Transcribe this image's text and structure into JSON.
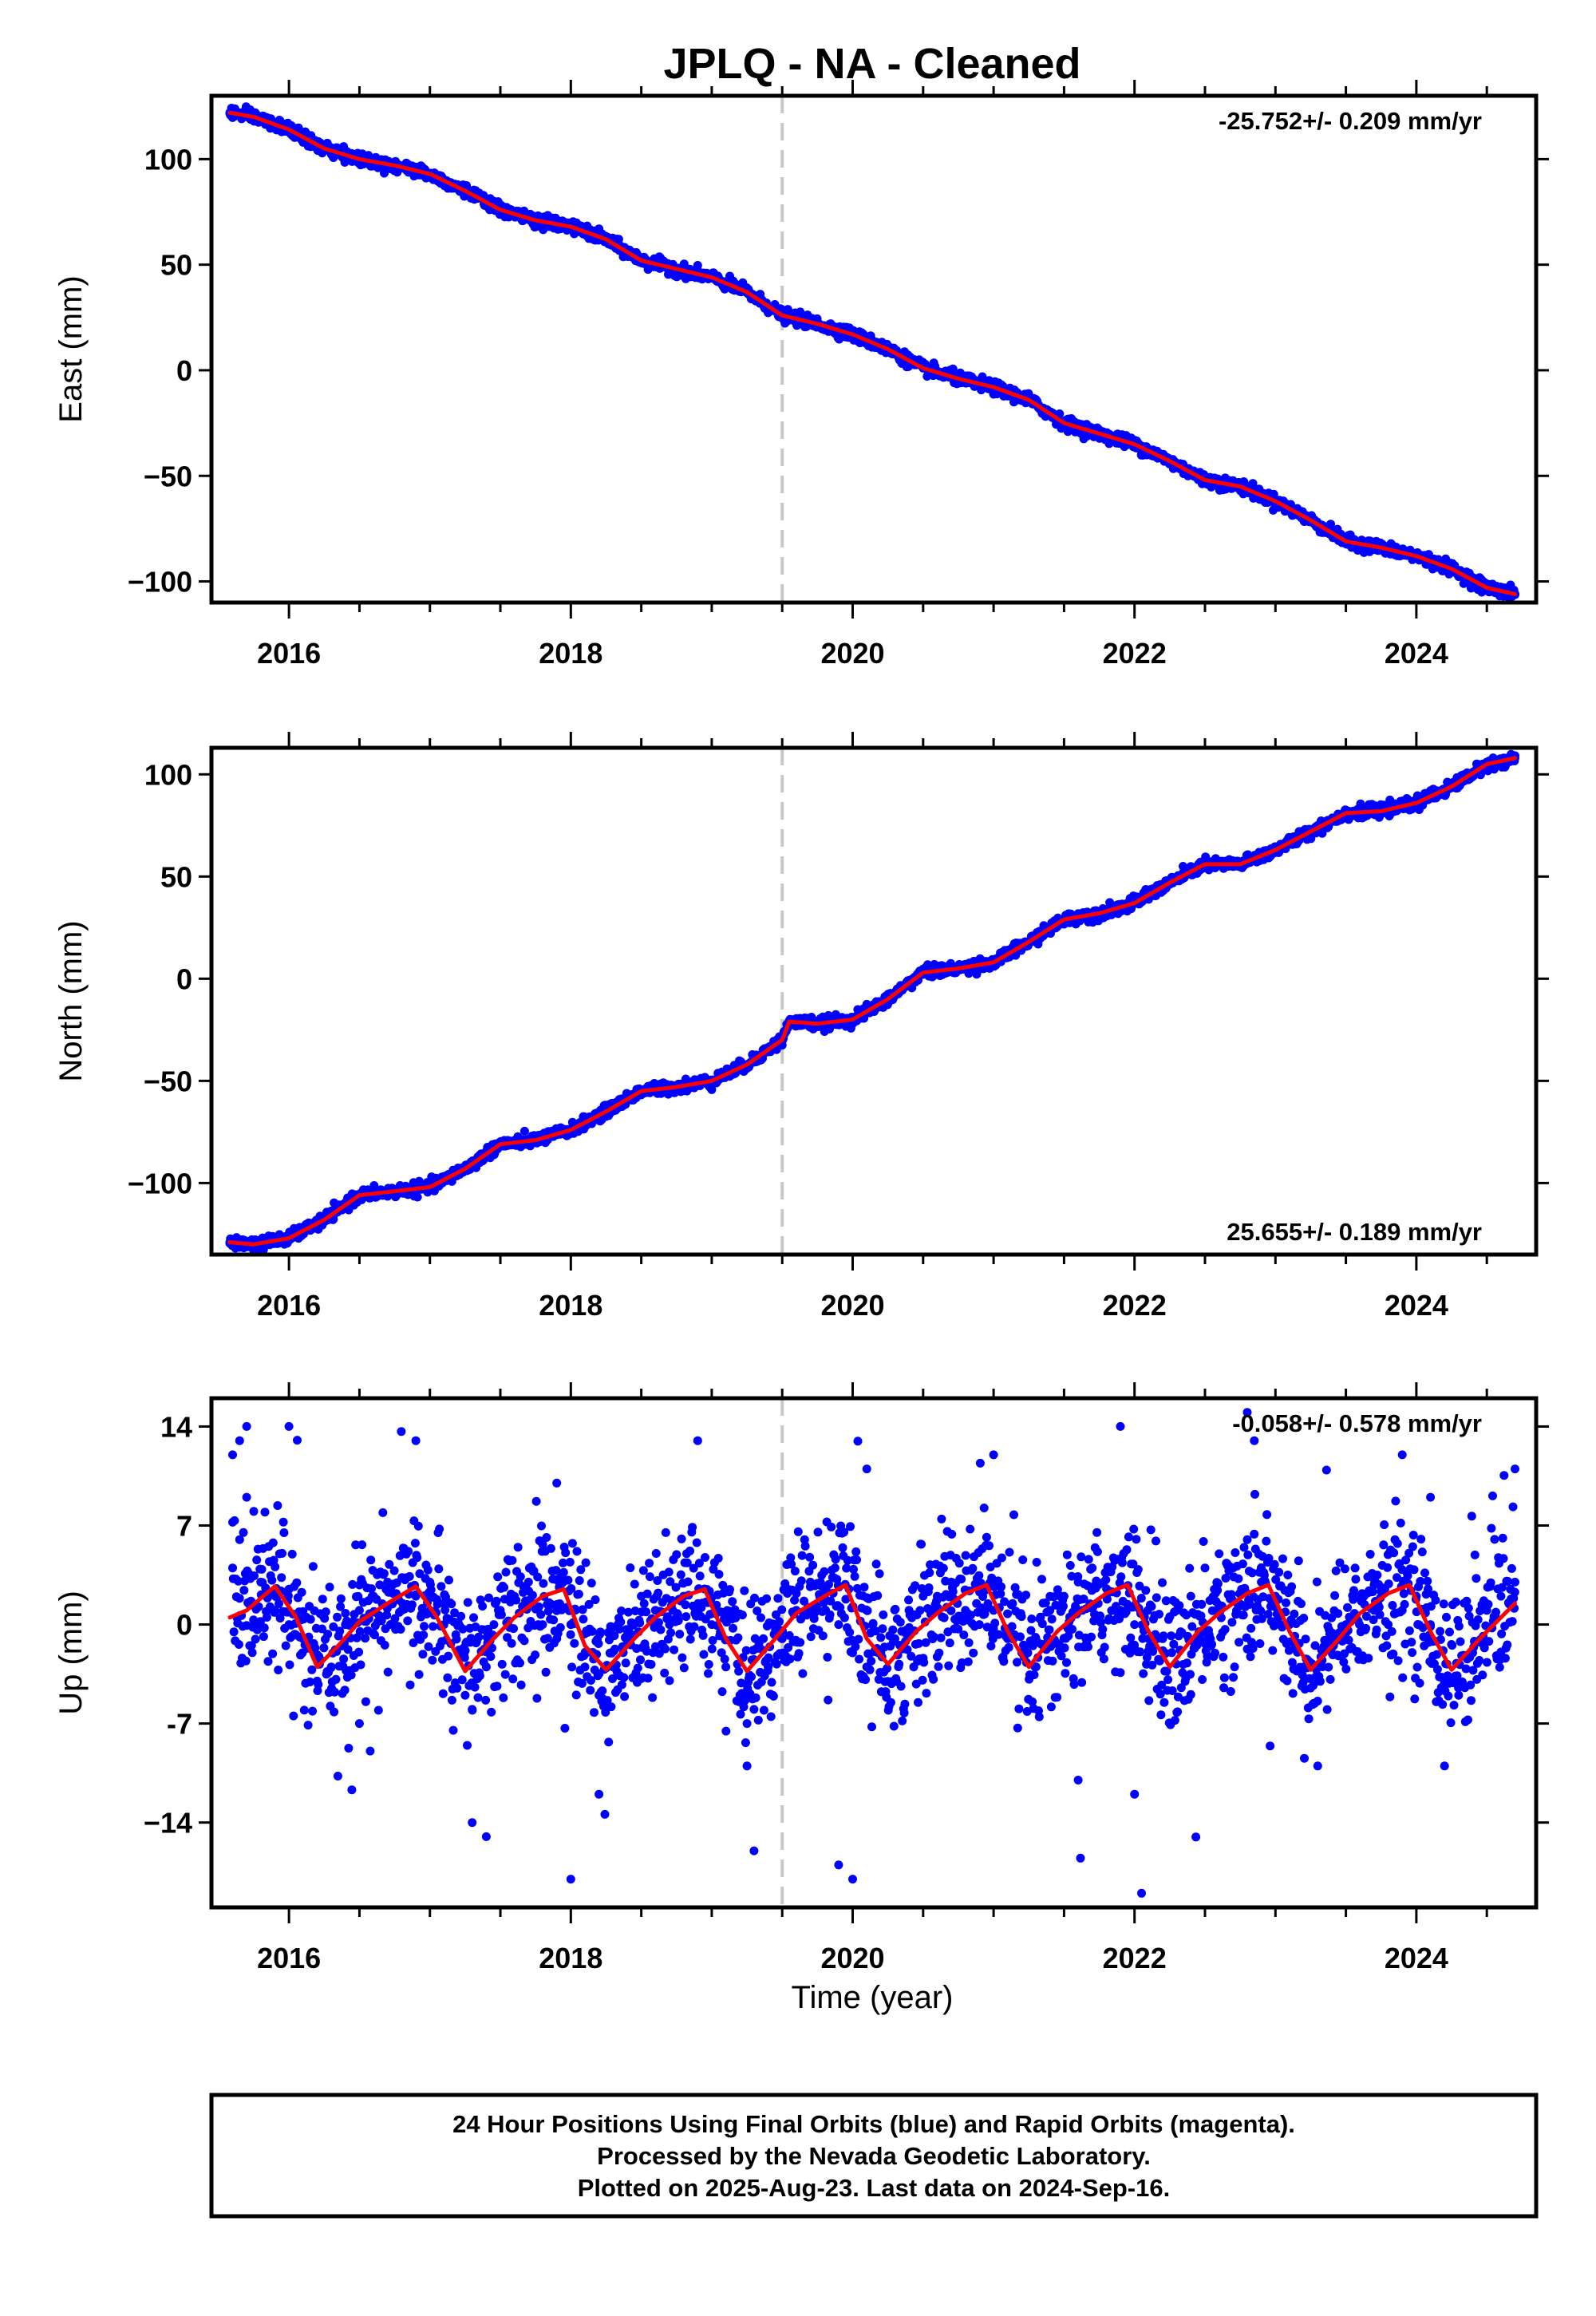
{
  "title": "JPLQ  - NA - Cleaned",
  "xlabel": "Time (year)",
  "footer": {
    "line1": "24 Hour Positions Using Final Orbits (blue) and Rapid Orbits (magenta).",
    "line2": "Processed by the Nevada Geodetic Laboratory.",
    "line3": "Plotted on 2025-Aug-23. Last data on 2024-Sep-16."
  },
  "colors": {
    "data": "#0000ff",
    "fit": "#ff0000",
    "event_line": "#c8c8c8",
    "frame": "#000000"
  },
  "chart_data": [
    {
      "type": "scatter",
      "ylabel": "East (mm)",
      "rate_text": "-25.752+/- 0.209 mm/yr",
      "rate_position": "top-right",
      "xlim": [
        2015.45,
        2024.85
      ],
      "ylim": [
        -110,
        130
      ],
      "xticks": [
        2016,
        2018,
        2020,
        2022,
        2024
      ],
      "xticks_labels": [
        "2016",
        "2018",
        "2020",
        "2022",
        "2024"
      ],
      "yticks": [
        100,
        50,
        0,
        -50,
        -100
      ],
      "yticks_labels": [
        "100",
        "50",
        "0",
        "−50",
        "−100"
      ],
      "event_line_x": 2019.5,
      "series": [
        {
          "role": "daily positions",
          "style": "dots",
          "x": [
            2015.58,
            2015.75,
            2016.0,
            2016.25,
            2016.5,
            2016.75,
            2017.0,
            2017.25,
            2017.5,
            2017.75,
            2018.0,
            2018.25,
            2018.5,
            2018.75,
            2019.0,
            2019.25,
            2019.5,
            2019.75,
            2020.0,
            2020.25,
            2020.5,
            2020.75,
            2021.0,
            2021.25,
            2021.5,
            2021.75,
            2022.0,
            2022.25,
            2022.5,
            2022.75,
            2023.0,
            2023.25,
            2023.5,
            2023.75,
            2024.0,
            2024.25,
            2024.5,
            2024.7
          ],
          "y": [
            122,
            120,
            114,
            105,
            100,
            97,
            93,
            85,
            76,
            71,
            68,
            62,
            52,
            48,
            44,
            37,
            26,
            22,
            17,
            10,
            1,
            -4,
            -8,
            -14,
            -25,
            -30,
            -35,
            -43,
            -52,
            -55,
            -62,
            -71,
            -81,
            -84,
            -88,
            -94,
            -103,
            -106
          ]
        },
        {
          "role": "model fit",
          "style": "line",
          "x": [
            2015.58,
            2015.75,
            2016.0,
            2016.25,
            2016.5,
            2016.75,
            2017.0,
            2017.25,
            2017.5,
            2017.75,
            2018.0,
            2018.25,
            2018.5,
            2018.75,
            2019.0,
            2019.25,
            2019.5,
            2019.75,
            2020.0,
            2020.25,
            2020.5,
            2020.75,
            2021.0,
            2021.25,
            2021.5,
            2021.75,
            2022.0,
            2022.25,
            2022.5,
            2022.75,
            2023.0,
            2023.25,
            2023.5,
            2023.75,
            2024.0,
            2024.25,
            2024.5,
            2024.7
          ],
          "y": [
            122,
            120,
            114,
            105,
            100,
            97,
            93,
            85,
            76,
            71,
            68,
            62,
            52,
            48,
            44,
            37,
            26,
            22,
            17,
            10,
            1,
            -4,
            -8,
            -14,
            -25,
            -30,
            -35,
            -43,
            -52,
            -55,
            -62,
            -71,
            -81,
            -84,
            -88,
            -94,
            -103,
            -106
          ]
        }
      ]
    },
    {
      "type": "scatter",
      "ylabel": "North (mm)",
      "rate_text": "25.655+/- 0.189 mm/yr",
      "rate_position": "bottom-right",
      "xlim": [
        2015.45,
        2024.85
      ],
      "ylim": [
        -135,
        113
      ],
      "xticks": [
        2016,
        2018,
        2020,
        2022,
        2024
      ],
      "xticks_labels": [
        "2016",
        "2018",
        "2020",
        "2022",
        "2024"
      ],
      "yticks": [
        100,
        50,
        0,
        -50,
        -100
      ],
      "yticks_labels": [
        "100",
        "50",
        "0",
        "−50",
        "−100"
      ],
      "event_line_x": 2019.5,
      "series": [
        {
          "role": "daily positions",
          "style": "dots",
          "x": [
            2015.58,
            2015.75,
            2016.0,
            2016.25,
            2016.5,
            2016.75,
            2017.0,
            2017.25,
            2017.5,
            2017.75,
            2018.0,
            2018.25,
            2018.5,
            2018.75,
            2019.0,
            2019.25,
            2019.5,
            2019.55,
            2019.75,
            2020.0,
            2020.25,
            2020.5,
            2020.75,
            2021.0,
            2021.25,
            2021.5,
            2021.75,
            2022.0,
            2022.25,
            2022.5,
            2022.75,
            2023.0,
            2023.25,
            2023.5,
            2023.75,
            2024.0,
            2024.25,
            2024.5,
            2024.7
          ],
          "y": [
            -129,
            -130,
            -127,
            -118,
            -106,
            -104,
            -102,
            -93,
            -81,
            -79,
            -74,
            -65,
            -55,
            -53,
            -50,
            -42,
            -30,
            -21,
            -22,
            -20,
            -10,
            3,
            5,
            8,
            18,
            29,
            32,
            37,
            47,
            56,
            56,
            63,
            72,
            81,
            82,
            86,
            94,
            105,
            108
          ]
        },
        {
          "role": "model fit",
          "style": "line",
          "x": [
            2015.58,
            2015.75,
            2016.0,
            2016.25,
            2016.5,
            2016.75,
            2017.0,
            2017.25,
            2017.5,
            2017.75,
            2018.0,
            2018.25,
            2018.5,
            2018.75,
            2019.0,
            2019.25,
            2019.5,
            2019.55,
            2019.75,
            2020.0,
            2020.25,
            2020.5,
            2020.75,
            2021.0,
            2021.25,
            2021.5,
            2021.75,
            2022.0,
            2022.25,
            2022.5,
            2022.75,
            2023.0,
            2023.25,
            2023.5,
            2023.75,
            2024.0,
            2024.25,
            2024.5,
            2024.7
          ],
          "y": [
            -129,
            -130,
            -127,
            -118,
            -106,
            -104,
            -102,
            -93,
            -81,
            -79,
            -74,
            -65,
            -55,
            -53,
            -50,
            -42,
            -30,
            -21,
            -22,
            -20,
            -10,
            3,
            5,
            8,
            18,
            29,
            32,
            37,
            47,
            56,
            56,
            63,
            72,
            81,
            82,
            86,
            94,
            105,
            108
          ]
        }
      ]
    },
    {
      "type": "scatter",
      "ylabel": "Up (mm)",
      "rate_text": "-0.058+/- 0.578 mm/yr",
      "rate_position": "top-right",
      "xlim": [
        2015.45,
        2024.85
      ],
      "ylim": [
        -20,
        16
      ],
      "xticks": [
        2016,
        2018,
        2020,
        2022,
        2024
      ],
      "xticks_labels": [
        "2016",
        "2018",
        "2020",
        "2022",
        "2024"
      ],
      "yticks": [
        14,
        7,
        0,
        -7,
        -14
      ],
      "yticks_labels": [
        "14",
        "7",
        "0",
        "-7",
        "−14"
      ],
      "event_line_x": 2019.5,
      "series": [
        {
          "role": "daily positions",
          "style": "dots",
          "x": [
            2015.6,
            2015.65,
            2015.7,
            2015.75,
            2015.8,
            2015.9,
            2016.0,
            2016.1,
            2016.2,
            2016.3,
            2016.4,
            2016.5,
            2016.6,
            2016.7,
            2016.8,
            2016.9,
            2017.0,
            2017.1,
            2017.2,
            2017.25,
            2017.3,
            2017.4,
            2017.5,
            2017.6,
            2017.7,
            2017.8,
            2017.9,
            2018.0,
            2018.1,
            2018.2,
            2018.3,
            2018.4,
            2018.5,
            2018.6,
            2018.7,
            2018.8,
            2018.9,
            2019.0,
            2019.1,
            2019.2,
            2019.25,
            2019.3,
            2019.4,
            2019.5,
            2019.6,
            2019.7,
            2019.8,
            2019.9,
            2020.0,
            2020.1,
            2020.2,
            2020.3,
            2020.4,
            2020.5,
            2020.6,
            2020.7,
            2020.8,
            2020.9,
            2021.0,
            2021.1,
            2021.2,
            2021.3,
            2021.4,
            2021.5,
            2021.6,
            2021.7,
            2021.8,
            2021.9,
            2022.0,
            2022.1,
            2022.2,
            2022.3,
            2022.4,
            2022.5,
            2022.6,
            2022.7,
            2022.8,
            2022.9,
            2023.0,
            2023.1,
            2023.2,
            2023.3,
            2023.4,
            2023.5,
            2023.6,
            2023.7,
            2023.8,
            2023.9,
            2024.0,
            2024.1,
            2024.2,
            2024.3,
            2024.4,
            2024.5,
            2024.6,
            2024.7,
            2015.6,
            2015.65,
            2015.7,
            2016.0,
            2016.5,
            2016.9,
            2017.3,
            2017.4,
            2017.9,
            2018.0,
            2018.2,
            2018.9,
            2019.25,
            2019.3,
            2019.9,
            2020.0,
            2020.1,
            2021.0,
            2021.6,
            2021.9,
            2022.0,
            2022.05,
            2022.8,
            2022.85,
            2023.3,
            2023.9,
            2024.1,
            2024.2,
            2024.7
          ],
          "y": [
            4,
            6,
            9,
            8,
            3,
            1,
            0,
            -1,
            -4,
            -3,
            0,
            1,
            2,
            3,
            1,
            2,
            3,
            0,
            -2,
            -5,
            -6,
            -3,
            1,
            2,
            3,
            0,
            -1,
            0,
            -3,
            -5,
            -3,
            -1,
            2,
            1,
            0,
            2,
            1,
            0,
            -3,
            -5,
            -7,
            -6,
            -3,
            -1,
            1,
            3,
            2,
            0,
            -2,
            -3,
            -2,
            -1,
            1,
            2,
            2,
            3,
            1,
            0,
            1,
            -1,
            -2,
            -1,
            1,
            2,
            3,
            4,
            2,
            1,
            0,
            -1,
            -1,
            1,
            2,
            4,
            5,
            4,
            6,
            3,
            2,
            0,
            -3,
            -4,
            -2,
            0,
            2,
            1,
            0,
            1,
            2,
            0,
            -4,
            -5,
            -2,
            1,
            2,
            3,
            12,
            13,
            14,
            14,
            -7,
            13,
            -14,
            -15,
            10,
            -18,
            -12,
            13,
            -10,
            -16,
            -17,
            -18,
            11,
            12,
            -11,
            14,
            -12,
            -19,
            15,
            13,
            -10,
            12,
            9,
            -10,
            11
          ]
        },
        {
          "role": "model fit",
          "style": "line",
          "x": [
            2015.58,
            2015.7,
            2015.9,
            2016.05,
            2016.2,
            2016.35,
            2016.5,
            2016.7,
            2016.9,
            2017.05,
            2017.25,
            2017.45,
            2017.6,
            2017.8,
            2017.95,
            2018.1,
            2018.25,
            2018.45,
            2018.6,
            2018.8,
            2018.95,
            2019.1,
            2019.25,
            2019.45,
            2019.6,
            2019.8,
            2019.95,
            2020.1,
            2020.25,
            2020.45,
            2020.6,
            2020.8,
            2020.95,
            2021.1,
            2021.25,
            2021.45,
            2021.6,
            2021.8,
            2021.95,
            2022.1,
            2022.25,
            2022.45,
            2022.6,
            2022.8,
            2022.95,
            2023.1,
            2023.25,
            2023.45,
            2023.6,
            2023.8,
            2023.95,
            2024.1,
            2024.25,
            2024.45,
            2024.7
          ],
          "y": [
            0.5,
            1.0,
            2.7,
            0.5,
            -3.0,
            -1.5,
            0.2,
            1.5,
            2.7,
            0.5,
            -3.3,
            -1.0,
            0.5,
            2.0,
            2.5,
            -1.5,
            -3.2,
            -1.0,
            0.5,
            2.0,
            2.5,
            -1.0,
            -3.3,
            -1.0,
            0.8,
            2.0,
            2.8,
            -1.0,
            -2.8,
            -0.5,
            0.8,
            2.2,
            2.8,
            -0.5,
            -3.0,
            -0.5,
            0.8,
            2.2,
            2.8,
            -0.5,
            -3.0,
            -0.5,
            0.8,
            2.2,
            2.8,
            -0.5,
            -3.2,
            -1.0,
            0.8,
            2.2,
            2.8,
            -0.5,
            -3.2,
            -1.0,
            1.5
          ]
        }
      ]
    }
  ]
}
